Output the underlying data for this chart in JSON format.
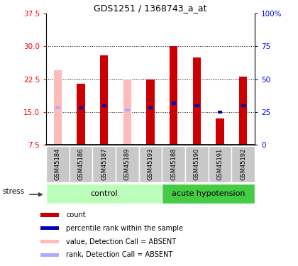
{
  "title": "GDS1251 / 1368743_a_at",
  "samples": [
    "GSM45184",
    "GSM45186",
    "GSM45187",
    "GSM45189",
    "GSM45193",
    "GSM45188",
    "GSM45190",
    "GSM45191",
    "GSM45192"
  ],
  "red_values": [
    null,
    21.5,
    28.0,
    null,
    22.5,
    30.0,
    27.5,
    13.5,
    23.0
  ],
  "pink_values": [
    24.5,
    null,
    null,
    22.5,
    null,
    null,
    null,
    null,
    null
  ],
  "blue_values": [
    null,
    16.0,
    16.5,
    null,
    16.0,
    17.0,
    16.5,
    15.0,
    16.5
  ],
  "light_blue_values": [
    16.0,
    null,
    null,
    15.5,
    null,
    null,
    null,
    null,
    null
  ],
  "absent_detection_calls": [
    true,
    false,
    false,
    true,
    false,
    false,
    false,
    false,
    false
  ],
  "ylim_left": [
    7.5,
    37.5
  ],
  "ylim_right": [
    0,
    100
  ],
  "yticks_left": [
    7.5,
    15.0,
    22.5,
    30.0,
    37.5
  ],
  "yticks_right": [
    0,
    25,
    50,
    75,
    100
  ],
  "bar_width": 0.35,
  "colors": {
    "red": "#cc0000",
    "pink": "#ffbbbb",
    "blue": "#0000bb",
    "light_blue": "#aaaaff",
    "ctrl_light": "#bbffbb",
    "hypo_dark": "#44cc44",
    "gray": "#c8c8c8",
    "white": "#ffffff"
  },
  "legend_labels": [
    "count",
    "percentile rank within the sample",
    "value, Detection Call = ABSENT",
    "rank, Detection Call = ABSENT"
  ],
  "legend_colors": [
    "#cc0000",
    "#0000bb",
    "#ffbbbb",
    "#aaaaff"
  ],
  "grid_lines": [
    15.0,
    22.5,
    30.0
  ],
  "n_control": 5,
  "n_hypo": 4
}
